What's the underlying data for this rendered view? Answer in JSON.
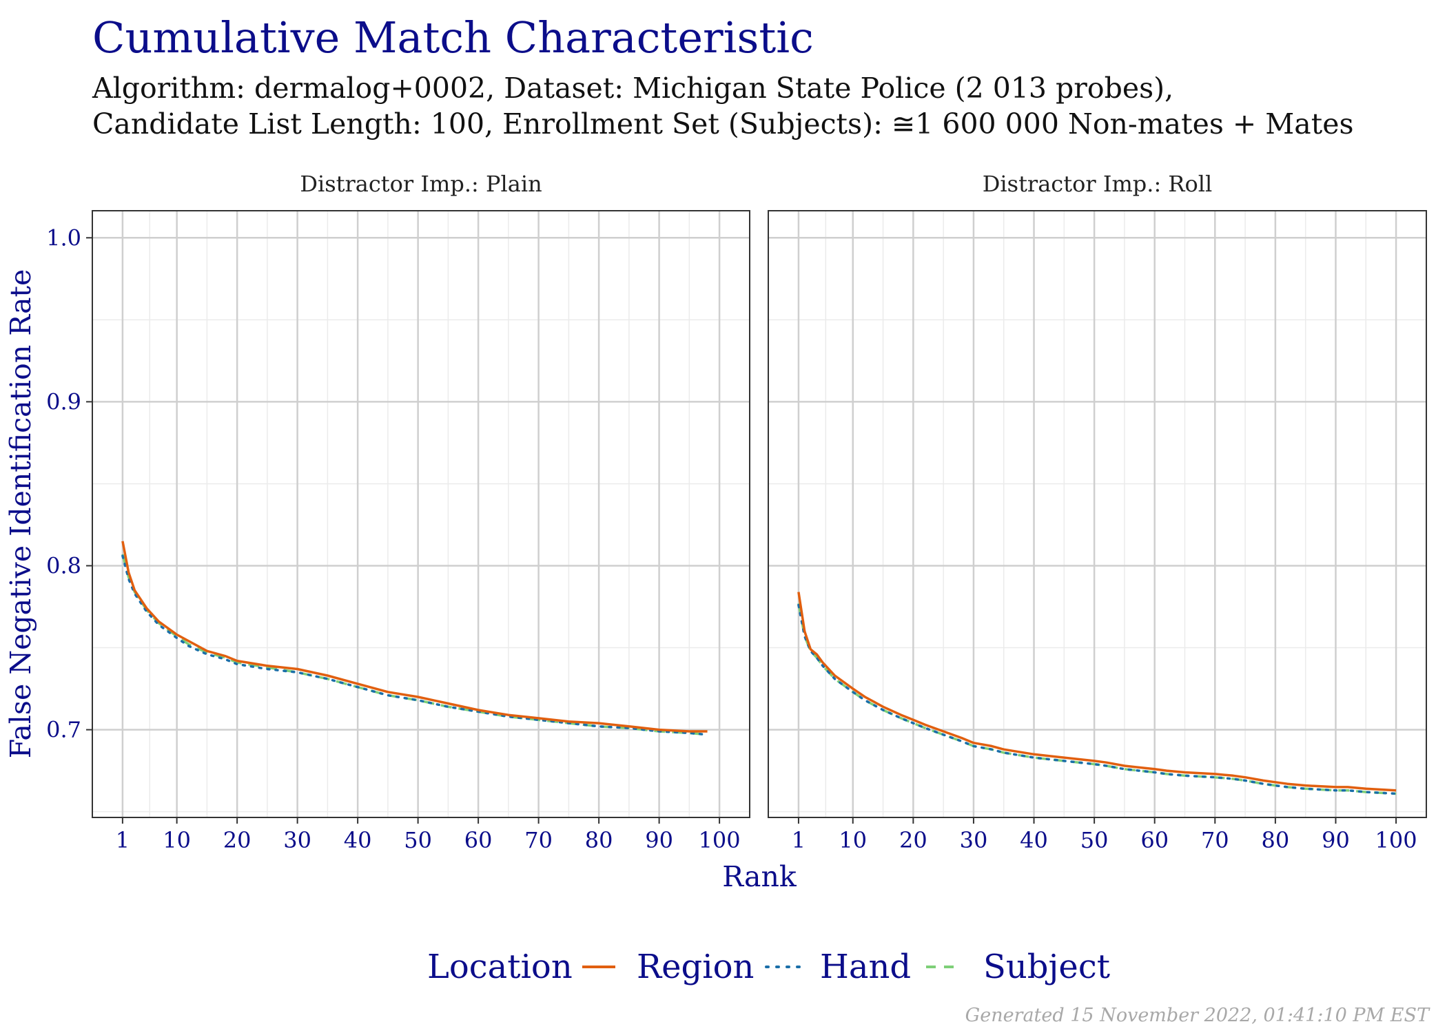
{
  "title": "Cumulative Match Characteristic",
  "subtitle_line1": "Algorithm: dermalog+0002, Dataset: Michigan State Police (2 013 probes),",
  "subtitle_line2": "Candidate List Length: 100, Enrollment Set (Subjects): ≅1 600 000 Non-mates + Mates",
  "footer": "Generated 15 November 2022, 01:41:10 PM EST",
  "colors": {
    "Region": "#e15f0f",
    "Hand": "#1a6ea8",
    "Subject": "#7ecf78",
    "accent": "#0b0d8a"
  },
  "chart_data": {
    "type": "line",
    "xlabel": "Rank",
    "ylabel": "False Negative Identification Rate",
    "xlim": [
      1,
      100
    ],
    "ylim": [
      0.65,
      1.0
    ],
    "xticks": [
      1,
      10,
      20,
      30,
      40,
      50,
      60,
      70,
      80,
      90,
      100
    ],
    "yticks": [
      0.7,
      0.8,
      0.9,
      1.0
    ],
    "ytick_labels": [
      "0.7",
      "0.8",
      "0.9",
      "1.0"
    ],
    "grid": true,
    "legend": {
      "title": "Location",
      "position": "bottom",
      "entries": [
        "Region",
        "Hand",
        "Subject"
      ]
    },
    "panels": [
      {
        "title": "Distractor Imp.: Plain",
        "series": [
          {
            "name": "Region",
            "style": "solid",
            "x": [
              1,
              2,
              3,
              5,
              7,
              10,
              12,
              15,
              18,
              20,
              25,
              30,
              35,
              40,
              45,
              50,
              55,
              60,
              65,
              70,
              75,
              80,
              85,
              90,
              95,
              98
            ],
            "y": [
              0.815,
              0.796,
              0.785,
              0.774,
              0.766,
              0.758,
              0.754,
              0.748,
              0.745,
              0.742,
              0.739,
              0.737,
              0.733,
              0.728,
              0.723,
              0.72,
              0.716,
              0.712,
              0.709,
              0.707,
              0.705,
              0.704,
              0.702,
              0.7,
              0.699,
              0.699
            ]
          },
          {
            "name": "Hand",
            "style": "dotted",
            "x": [
              1,
              2,
              3,
              5,
              7,
              10,
              12,
              15,
              18,
              20,
              25,
              30,
              35,
              40,
              45,
              50,
              55,
              60,
              65,
              70,
              75,
              80,
              85,
              90,
              95,
              98
            ],
            "y": [
              0.806,
              0.792,
              0.783,
              0.772,
              0.764,
              0.756,
              0.751,
              0.746,
              0.743,
              0.74,
              0.737,
              0.735,
              0.731,
              0.726,
              0.721,
              0.718,
              0.714,
              0.711,
              0.708,
              0.706,
              0.704,
              0.702,
              0.701,
              0.699,
              0.698,
              0.697
            ]
          },
          {
            "name": "Subject",
            "style": "dashed",
            "x": [
              1,
              2,
              3,
              5,
              7,
              10,
              12,
              15,
              18,
              20,
              25,
              30,
              35,
              40,
              45,
              50,
              55,
              60,
              65,
              70,
              75,
              80,
              85,
              90,
              95,
              98
            ],
            "y": [
              0.807,
              0.793,
              0.784,
              0.773,
              0.765,
              0.757,
              0.752,
              0.747,
              0.744,
              0.741,
              0.738,
              0.735,
              0.731,
              0.726,
              0.721,
              0.718,
              0.714,
              0.711,
              0.708,
              0.706,
              0.704,
              0.702,
              0.701,
              0.699,
              0.698,
              0.697
            ]
          }
        ]
      },
      {
        "title": "Distractor Imp.: Roll",
        "series": [
          {
            "name": "Region",
            "style": "solid",
            "x": [
              1,
              2,
              3,
              4,
              5,
              7,
              10,
              12,
              15,
              18,
              20,
              22,
              25,
              28,
              30,
              33,
              35,
              40,
              45,
              50,
              52,
              55,
              60,
              62,
              65,
              70,
              73,
              75,
              78,
              80,
              82,
              85,
              90,
              92,
              95,
              100
            ],
            "y": [
              0.784,
              0.76,
              0.749,
              0.746,
              0.741,
              0.733,
              0.725,
              0.72,
              0.714,
              0.709,
              0.706,
              0.703,
              0.699,
              0.695,
              0.692,
              0.69,
              0.688,
              0.685,
              0.683,
              0.681,
              0.68,
              0.678,
              0.676,
              0.675,
              0.674,
              0.673,
              0.672,
              0.671,
              0.669,
              0.668,
              0.667,
              0.666,
              0.665,
              0.665,
              0.664,
              0.663
            ]
          },
          {
            "name": "Hand",
            "style": "dotted",
            "x": [
              1,
              2,
              3,
              4,
              5,
              7,
              10,
              12,
              15,
              18,
              20,
              22,
              25,
              28,
              30,
              33,
              35,
              40,
              45,
              50,
              52,
              55,
              60,
              62,
              65,
              70,
              73,
              75,
              78,
              80,
              82,
              85,
              90,
              92,
              95,
              100
            ],
            "y": [
              0.776,
              0.757,
              0.748,
              0.744,
              0.739,
              0.731,
              0.723,
              0.718,
              0.712,
              0.707,
              0.704,
              0.701,
              0.697,
              0.693,
              0.69,
              0.688,
              0.686,
              0.683,
              0.681,
              0.679,
              0.678,
              0.676,
              0.674,
              0.673,
              0.672,
              0.671,
              0.67,
              0.669,
              0.667,
              0.666,
              0.665,
              0.664,
              0.663,
              0.663,
              0.662,
              0.661
            ]
          },
          {
            "name": "Subject",
            "style": "dashed",
            "x": [
              1,
              2,
              3,
              4,
              5,
              7,
              10,
              12,
              15,
              18,
              20,
              22,
              25,
              28,
              30,
              33,
              35,
              40,
              45,
              50,
              52,
              55,
              60,
              62,
              65,
              70,
              73,
              75,
              78,
              80,
              82,
              85,
              90,
              92,
              95,
              100
            ],
            "y": [
              0.777,
              0.757,
              0.748,
              0.744,
              0.739,
              0.731,
              0.723,
              0.718,
              0.712,
              0.707,
              0.704,
              0.701,
              0.697,
              0.693,
              0.69,
              0.688,
              0.686,
              0.683,
              0.681,
              0.679,
              0.678,
              0.676,
              0.674,
              0.673,
              0.672,
              0.671,
              0.67,
              0.669,
              0.667,
              0.666,
              0.665,
              0.664,
              0.663,
              0.663,
              0.662,
              0.661
            ]
          }
        ]
      }
    ]
  }
}
